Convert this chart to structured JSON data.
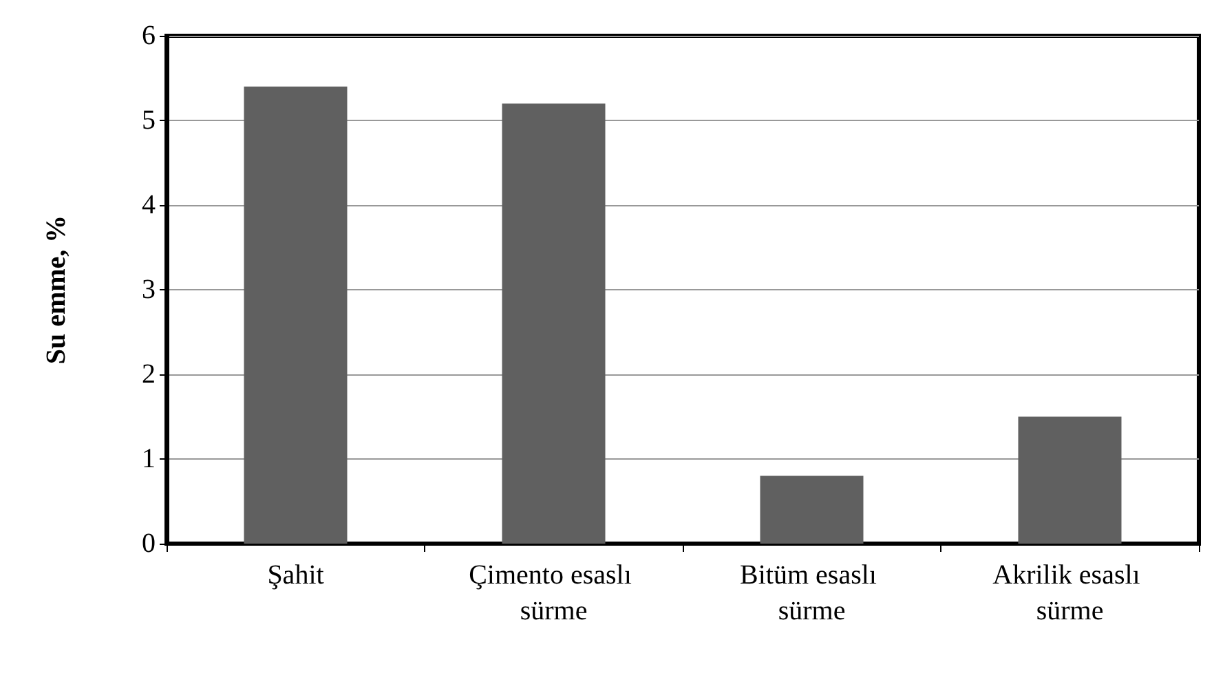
{
  "chart_data": {
    "type": "bar",
    "ylabel": "Su emme, %",
    "categories": [
      "Şahit",
      "Çimento esaslı sürme",
      "Bitüm esaslı sürme",
      "Akrilik esaslı sürme"
    ],
    "values": [
      5.4,
      5.2,
      0.8,
      1.5
    ],
    "color": "#606060",
    "ylim": [
      0,
      6
    ],
    "yticks": [
      0,
      1,
      2,
      3,
      4,
      5,
      6
    ],
    "grid": "y"
  }
}
